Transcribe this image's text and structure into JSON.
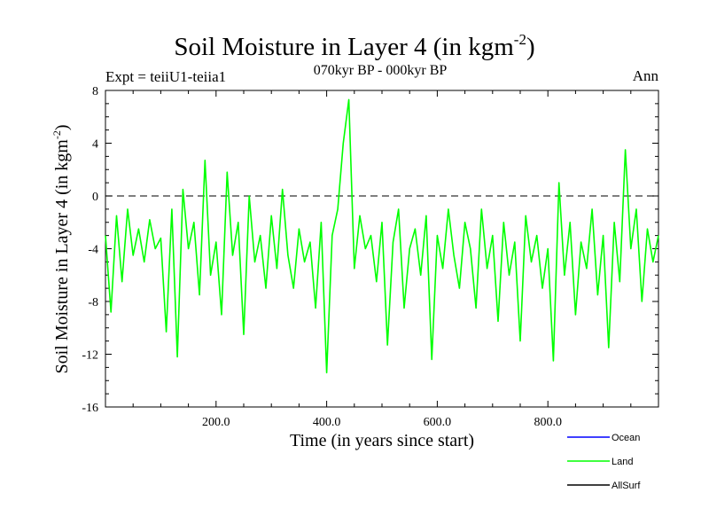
{
  "header": {
    "title_main": "Soil Moisture in Layer 4 (in kgm",
    "title_sup": "-2",
    "title_close": ")",
    "subtitle": "070kyr BP - 000kyr BP",
    "left_label": "Expt = teiiU1-teiia1",
    "right_label": "Ann"
  },
  "axes": {
    "xlabel": "Time (in years since start)",
    "ylabel_main": "Soil Moisture in Layer 4 (in kgm",
    "ylabel_sup": "-2",
    "ylabel_close": ")"
  },
  "legend": [
    {
      "name": "Ocean",
      "color": "#0000ff"
    },
    {
      "name": "Land",
      "color": "#00ff00"
    },
    {
      "name": "AllSurf",
      "color": "#000000"
    }
  ],
  "chart_data": {
    "type": "line",
    "xlim": [
      0,
      1000
    ],
    "ylim": [
      -16,
      8
    ],
    "xticks": [
      200,
      400,
      600,
      800
    ],
    "xtick_labels": [
      "200.0",
      "400.0",
      "600.0",
      "800.0"
    ],
    "yticks": [
      -16,
      -12,
      -8,
      -4,
      0,
      4,
      8
    ],
    "ytick_labels": [
      "-16",
      "-12",
      "-8",
      "-4",
      "0",
      "4",
      "8"
    ],
    "zero_line": 0,
    "series": [
      {
        "name": "Land",
        "color": "#00ff00",
        "x": [
          0,
          10,
          20,
          30,
          40,
          50,
          60,
          70,
          80,
          90,
          100,
          110,
          120,
          130,
          140,
          150,
          160,
          170,
          180,
          190,
          200,
          210,
          220,
          230,
          240,
          250,
          260,
          270,
          280,
          290,
          300,
          310,
          320,
          330,
          340,
          350,
          360,
          370,
          380,
          390,
          400,
          410,
          420,
          430,
          440,
          450,
          460,
          470,
          480,
          490,
          500,
          510,
          520,
          530,
          540,
          550,
          560,
          570,
          580,
          590,
          600,
          610,
          620,
          630,
          640,
          650,
          660,
          670,
          680,
          690,
          700,
          710,
          720,
          730,
          740,
          750,
          760,
          770,
          780,
          790,
          800,
          810,
          820,
          830,
          840,
          850,
          860,
          870,
          880,
          890,
          900,
          910,
          920,
          930,
          940,
          950,
          960,
          970,
          980,
          990,
          1000
        ],
        "y": [
          -3,
          -8.8,
          -1.5,
          -6.5,
          -1,
          -4.5,
          -2.5,
          -5,
          -1.8,
          -4,
          -3.2,
          -10.3,
          -1,
          -12.2,
          0.5,
          -4,
          -2,
          -7.5,
          2.7,
          -6,
          -3.5,
          -9,
          1.8,
          -4.5,
          -2,
          -10.5,
          0,
          -5,
          -3,
          -7,
          -1.5,
          -5.5,
          0.5,
          -4.5,
          -7,
          -2.5,
          -5,
          -3.5,
          -8.5,
          -2,
          -13.4,
          -3,
          -1,
          4,
          7.3,
          -5.5,
          -1.5,
          -4,
          -3,
          -6.5,
          -2,
          -11.3,
          -3.5,
          -1,
          -8.5,
          -4,
          -2.5,
          -6,
          -1.5,
          -12.4,
          -3,
          -5.5,
          -1,
          -4.5,
          -7,
          -2,
          -4,
          -8.5,
          -1,
          -5.5,
          -3,
          -9.5,
          -2,
          -6,
          -3.5,
          -11,
          -1.5,
          -5,
          -3,
          -7,
          -4,
          -12.5,
          1,
          -6,
          -2,
          -9,
          -3.5,
          -5.5,
          -1,
          -7.5,
          -3,
          -11.5,
          -2,
          -6.5,
          3.5,
          -4,
          -1,
          -8,
          -2.5,
          -5,
          -3
        ]
      }
    ]
  }
}
